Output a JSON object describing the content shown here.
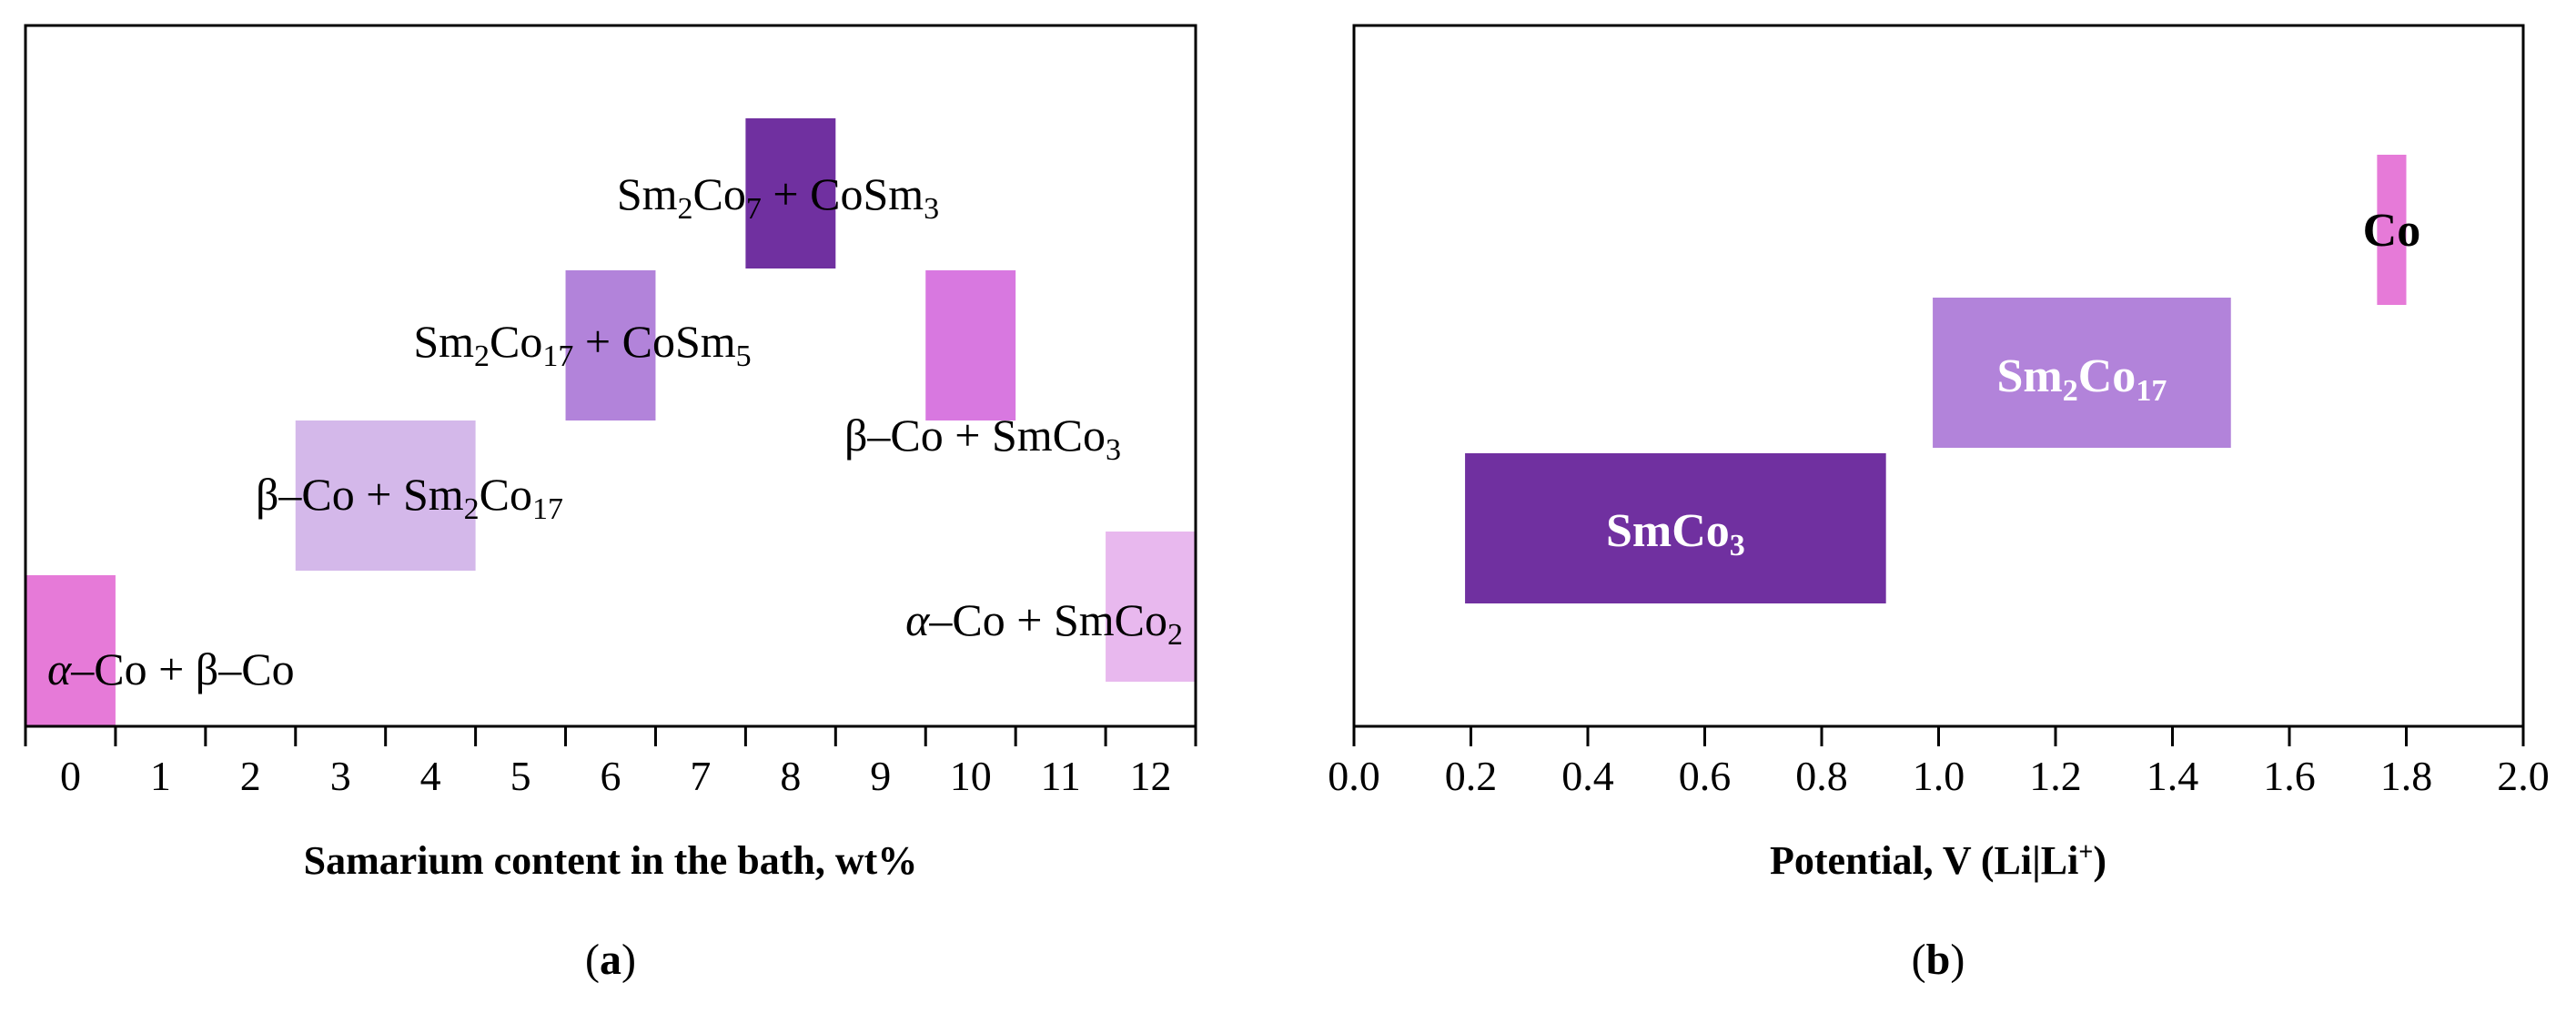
{
  "chart_data": [
    {
      "panel": "a",
      "type": "bar",
      "caption_letter": "a",
      "xlabel": "Samarium content in the bath, wt%",
      "ylabel": "",
      "title": "",
      "xlim": [
        -0.5,
        12.5
      ],
      "xticks": [
        "0",
        "1",
        "2",
        "3",
        "4",
        "5",
        "6",
        "7",
        "8",
        "9",
        "10",
        "11",
        "12"
      ],
      "bars": [
        {
          "phase": [
            "α",
            "–Co + β–Co"
          ],
          "x0": -0.5,
          "x1": 0.5,
          "level": 0,
          "color": "#e67ad8"
        },
        {
          "phase": [
            "β–Co + Sm",
            "2",
            "Co",
            "17"
          ],
          "x0": 2.5,
          "x1": 4.5,
          "level": 1,
          "color": "#d4b8ea"
        },
        {
          "phase": [
            "Sm",
            "2",
            "Co",
            "17",
            " + CoSm",
            "5"
          ],
          "x0": 5.5,
          "x1": 6.5,
          "level": 2,
          "color": "#b283da"
        },
        {
          "phase": [
            "Sm",
            "2",
            "Co",
            "7",
            " + CoSm",
            "3"
          ],
          "x0": 7.5,
          "x1": 8.5,
          "level": 3,
          "color": "#7030a0"
        },
        {
          "phase": [
            "β–Co + SmCo",
            "3"
          ],
          "x0": 9.5,
          "x1": 10.5,
          "level": 2,
          "color": "#d878e0"
        },
        {
          "phase": [
            "α",
            "–Co + SmCo",
            "2"
          ],
          "x0": 11.5,
          "x1": 12.5,
          "level": 0.3,
          "color": "#e8b8ee"
        }
      ]
    },
    {
      "panel": "b",
      "type": "bar",
      "caption_letter": "b",
      "xlabel": "Potential, V (Li|Li",
      "xlabel_sup": "+",
      "xlabel_end": ")",
      "ylabel": "",
      "title": "",
      "xlim": [
        0.0,
        2.0
      ],
      "xticks": [
        "0.0",
        "0.2",
        "0.4",
        "0.6",
        "0.8",
        "1.0",
        "1.2",
        "1.4",
        "1.6",
        "1.8",
        "2.0"
      ],
      "bars": [
        {
          "phase": [
            "SmCo",
            "3"
          ],
          "x0": 0.19,
          "x1": 0.91,
          "level": 0,
          "color": "#7030a0"
        },
        {
          "phase": [
            "Sm",
            "2",
            "Co",
            "17"
          ],
          "x0": 0.99,
          "x1": 1.5,
          "level": 1,
          "color": "#b283da"
        },
        {
          "phase": [
            "Co"
          ],
          "x0": 1.75,
          "x1": 1.8,
          "level": 2,
          "color": "#e67ad8"
        }
      ]
    }
  ]
}
